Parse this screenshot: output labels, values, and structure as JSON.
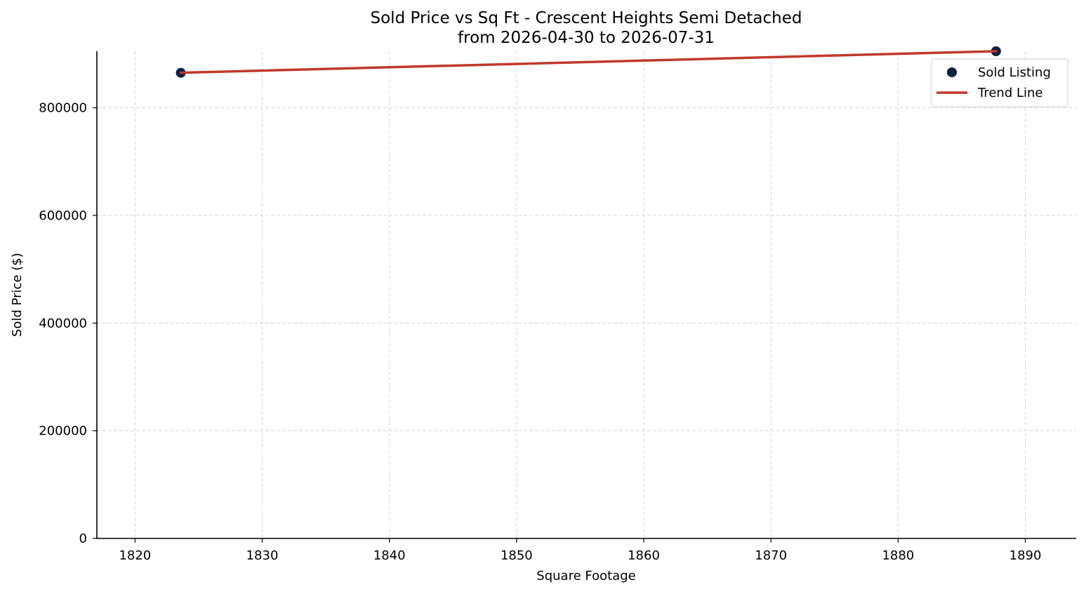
{
  "chart_data": {
    "type": "scatter",
    "title": "Sold Price vs Sq Ft - Crescent Heights Semi Detached",
    "subtitle": "from 2026-04-30 to 2026-07-31",
    "xlabel": "Square Footage",
    "ylabel": "Sold Price ($)",
    "xlim": [
      1817,
      1894
    ],
    "ylim": [
      0,
      905000
    ],
    "x_ticks": [
      1820,
      1830,
      1840,
      1850,
      1860,
      1870,
      1880,
      1890
    ],
    "y_ticks": [
      0,
      200000,
      400000,
      600000,
      800000
    ],
    "x_tick_labels": [
      "1820",
      "1830",
      "1840",
      "1850",
      "1860",
      "1870",
      "1880",
      "1890"
    ],
    "y_tick_labels": [
      "0",
      "200000",
      "400000",
      "600000",
      "800000"
    ],
    "grid": true,
    "legend_position": "top-right",
    "series": [
      {
        "name": "Sold Listing",
        "kind": "scatter",
        "color": "#0b2240",
        "points": [
          {
            "x": 1823.6,
            "y": 865000
          },
          {
            "x": 1887.7,
            "y": 905000
          }
        ]
      },
      {
        "name": "Trend Line",
        "kind": "line",
        "color": "#c0392b",
        "points": [
          {
            "x": 1823.6,
            "y": 865000
          },
          {
            "x": 1887.7,
            "y": 905000
          }
        ]
      }
    ]
  }
}
